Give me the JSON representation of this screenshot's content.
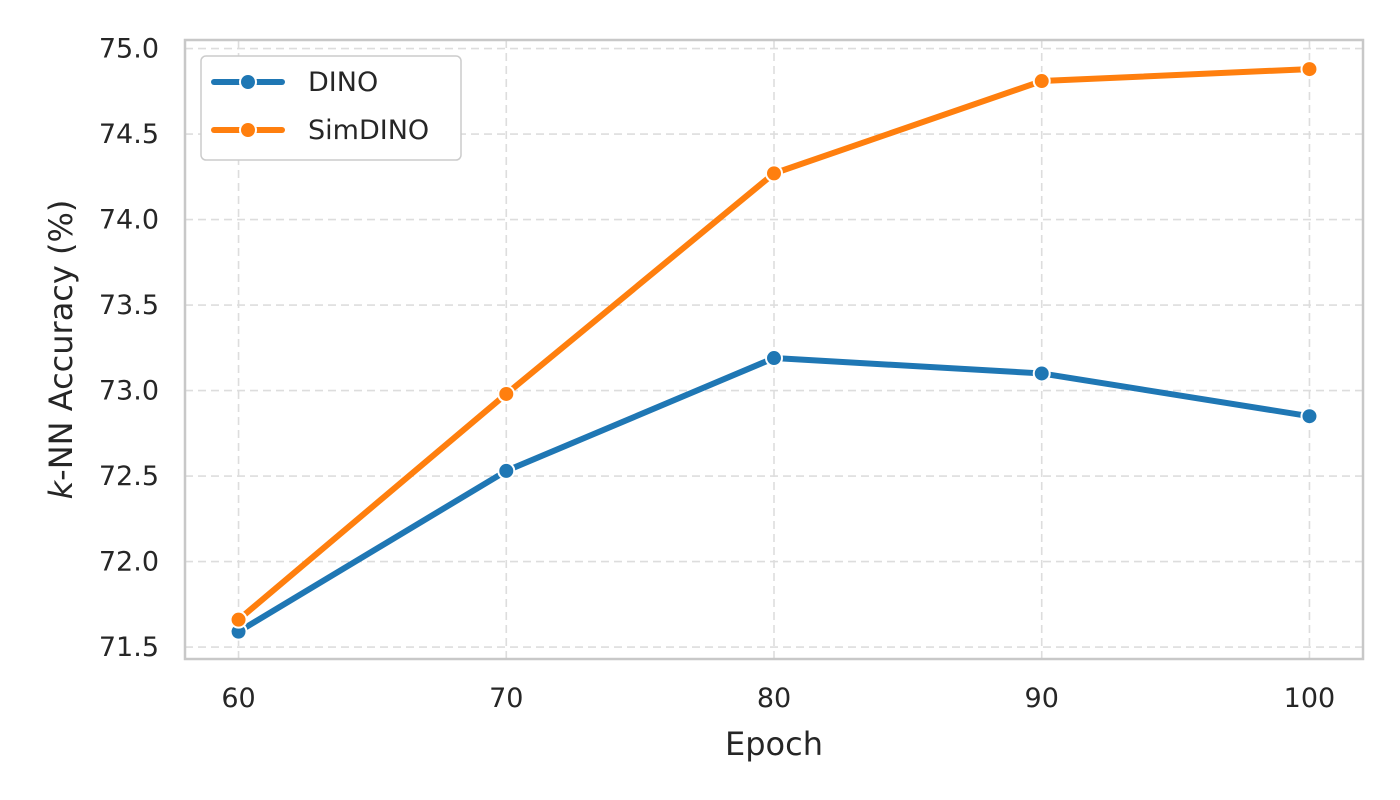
{
  "chart_data": {
    "type": "line",
    "title": "",
    "xlabel": "Epoch",
    "ylabel": {
      "italic": "k",
      "rest": "-NN Accuracy (%)"
    },
    "x": [
      60,
      70,
      80,
      90,
      100
    ],
    "x_ticks": [
      "60",
      "70",
      "80",
      "90",
      "100"
    ],
    "y_ticks": [
      "71.5",
      "72.0",
      "72.5",
      "73.0",
      "73.5",
      "74.0",
      "74.5",
      "75.0"
    ],
    "xlim": [
      58,
      102
    ],
    "ylim": [
      71.43,
      75.05
    ],
    "grid": true,
    "legend_position": "top-left",
    "series": [
      {
        "name": "DINO",
        "color": "#1f77b4",
        "values": [
          71.59,
          72.53,
          73.19,
          73.1,
          72.85
        ]
      },
      {
        "name": "SimDINO",
        "color": "#ff7f0e",
        "values": [
          71.66,
          72.98,
          74.27,
          74.81,
          74.88
        ]
      }
    ]
  }
}
